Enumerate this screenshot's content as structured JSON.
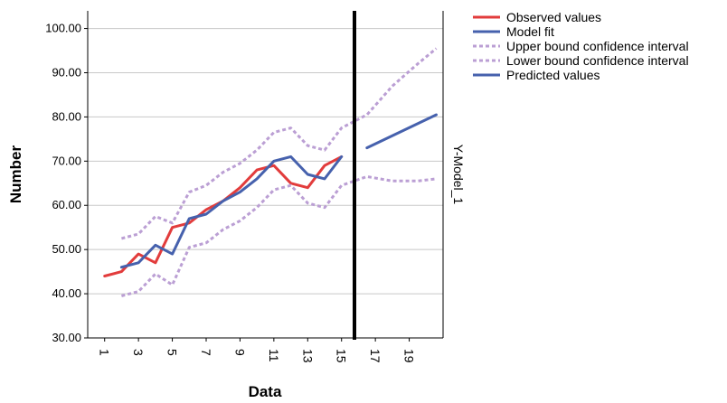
{
  "chart_data": {
    "type": "line",
    "title": "",
    "xlabel": "Data",
    "ylabel": "Number",
    "right_label": "Y-Model_1",
    "xlim": [
      0,
      21
    ],
    "ylim": [
      30,
      104
    ],
    "x_ticks": [
      "1",
      "3",
      "5",
      "7",
      "9",
      "11",
      "13",
      "15",
      "17",
      "19"
    ],
    "x_tick_values": [
      1,
      3,
      5,
      7,
      9,
      11,
      13,
      15,
      17,
      19
    ],
    "y_ticks": [
      "30.00",
      "40.00",
      "50.00",
      "60.00",
      "70.00",
      "80.00",
      "90.00",
      "100.00"
    ],
    "y_tick_values": [
      30,
      40,
      50,
      60,
      70,
      80,
      90,
      100
    ],
    "grid": "horizontal",
    "legend_position": "top-right",
    "forecast_divider_x": 16.2,
    "series": [
      {
        "name": "Observed values",
        "color": "#e23c3c",
        "style": "solid",
        "x": [
          1,
          2,
          3,
          4,
          5,
          6,
          7,
          8,
          9,
          10,
          11,
          12,
          13,
          14,
          15
        ],
        "y": [
          44,
          45,
          49,
          47,
          55,
          56,
          59,
          61,
          64,
          68,
          69,
          65,
          64,
          69,
          71
        ]
      },
      {
        "name": "Model fit",
        "color": "#4661ad",
        "style": "solid",
        "x": [
          2,
          3,
          4,
          5,
          6,
          7,
          8,
          9,
          10,
          11,
          12,
          13,
          14,
          15
        ],
        "y": [
          46,
          47,
          51,
          49,
          57,
          58,
          61,
          63,
          66,
          70,
          71,
          67,
          66,
          71
        ]
      },
      {
        "name": "Upper bound confidence interval",
        "color": "#bb9fd4",
        "style": "dotted",
        "x": [
          2,
          3,
          4,
          5,
          6,
          7,
          8,
          9,
          10,
          11,
          12,
          13,
          14,
          15,
          16.5,
          18,
          19.5,
          20.6
        ],
        "y": [
          52.5,
          53.5,
          57.5,
          56,
          63,
          64.5,
          67.5,
          69.5,
          72.5,
          76.5,
          77.5,
          73.5,
          72.5,
          77.5,
          80.5,
          87,
          92,
          95.5
        ]
      },
      {
        "name": "Lower bound confidence interval",
        "color": "#bb9fd4",
        "style": "dotted",
        "x": [
          2,
          3,
          4,
          5,
          6,
          7,
          8,
          9,
          10,
          11,
          12,
          13,
          14,
          15,
          16.5,
          18,
          19.5,
          20.6
        ],
        "y": [
          39.5,
          40.5,
          44.5,
          42,
          50.5,
          51.5,
          54.5,
          56.5,
          59.5,
          63.5,
          64.5,
          60.5,
          59.5,
          64.5,
          66.5,
          65.5,
          65.5,
          66
        ]
      },
      {
        "name": "Predicted values",
        "color": "#4661ad",
        "style": "solid",
        "x": [
          16.5,
          20.6
        ],
        "y": [
          73,
          80.5
        ]
      }
    ]
  }
}
